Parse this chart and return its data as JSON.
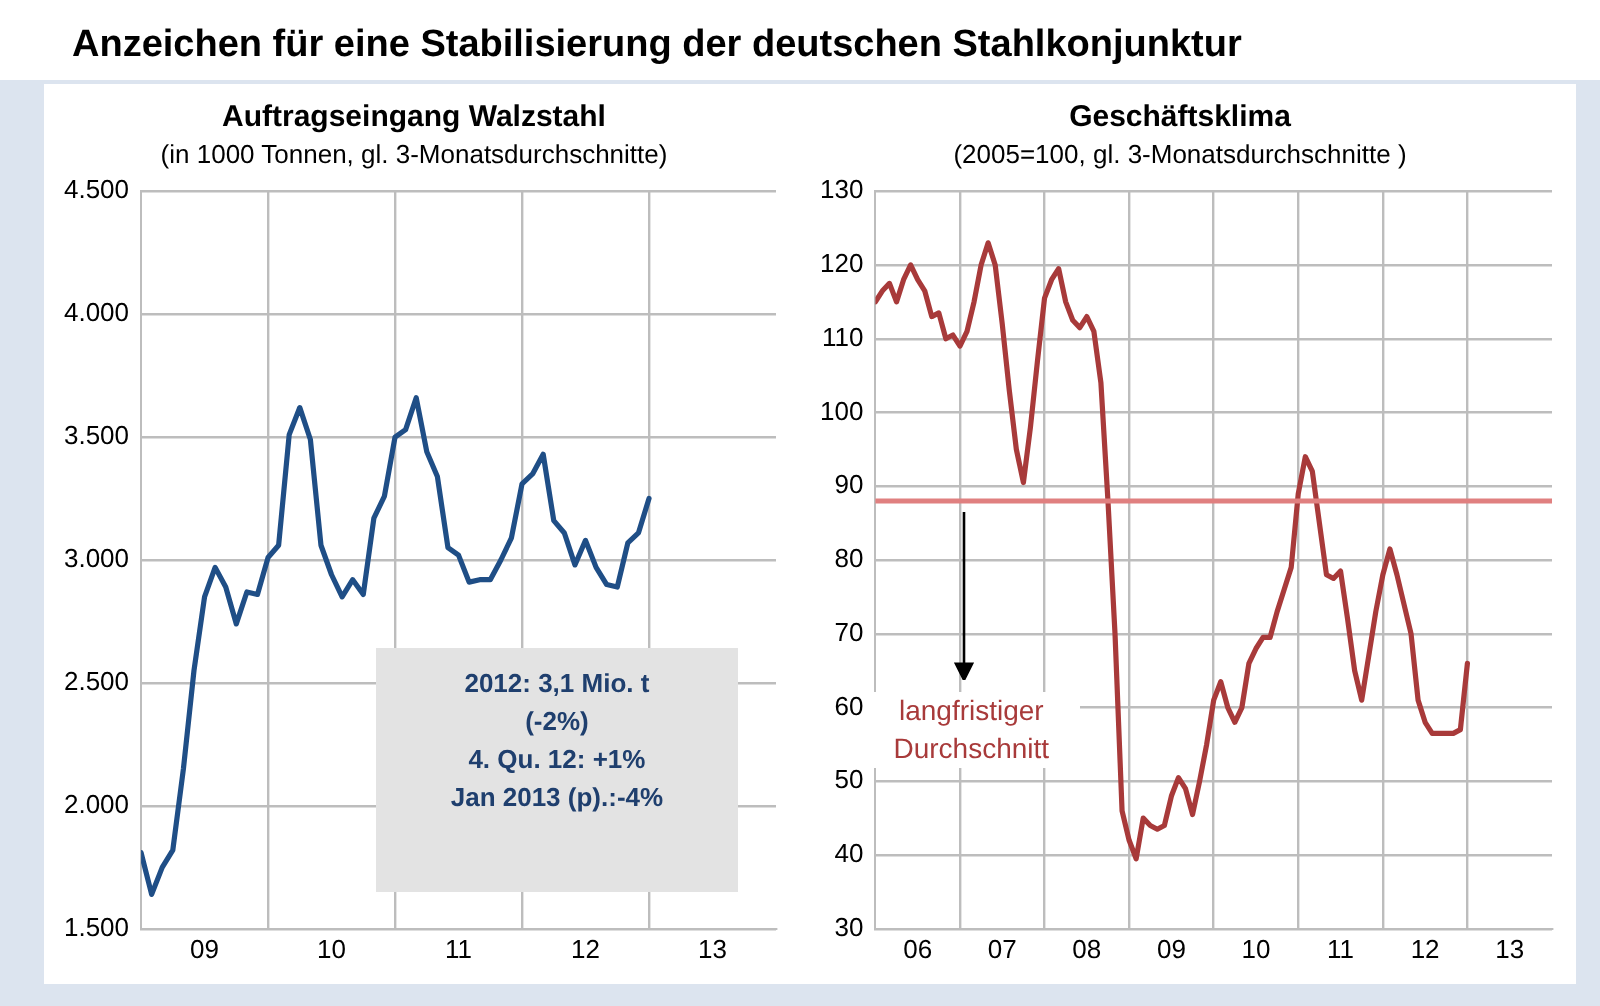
{
  "chart_data": [
    {
      "type": "line",
      "title": "Auftragseingang Walzstahl",
      "subtitle": "(in 1000 Tonnen, gl. 3-Monatsdurchschnitte)",
      "annotations": [
        "Anzeichen für eine Stabilisierung der deutschen Stahlkonjunktur",
        "2012: 3,1 Mio. t\n(-2%)\n4. Qu. 12: +1%\nJan 2013 (p).:-4%"
      ],
      "x": [
        "2009-01",
        "2009-02",
        "2009-03",
        "2009-04",
        "2009-05",
        "2009-06",
        "2009-07",
        "2009-08",
        "2009-09",
        "2009-10",
        "2009-11",
        "2009-12",
        "2010-01",
        "2010-02",
        "2010-03",
        "2010-04",
        "2010-05",
        "2010-06",
        "2010-07",
        "2010-08",
        "2010-09",
        "2010-10",
        "2010-11",
        "2010-12",
        "2011-01",
        "2011-02",
        "2011-03",
        "2011-04",
        "2011-05",
        "2011-06",
        "2011-07",
        "2011-08",
        "2011-09",
        "2011-10",
        "2011-11",
        "2011-12",
        "2012-01",
        "2012-02",
        "2012-03",
        "2012-04",
        "2012-05",
        "2012-06",
        "2012-07",
        "2012-08",
        "2012-09",
        "2012-10",
        "2012-11",
        "2012-12",
        "2013-01"
      ],
      "series": [
        {
          "color": "#1f4e86",
          "values": [
            1810,
            1640,
            1750,
            1820,
            2150,
            2550,
            2850,
            2970,
            2890,
            2740,
            2870,
            2860,
            3010,
            3060,
            3510,
            3620,
            3490,
            3060,
            2940,
            2850,
            2920,
            2860,
            3170,
            3260,
            3500,
            3530,
            3660,
            3440,
            3340,
            3050,
            3020,
            2910,
            2920,
            2920,
            3000,
            3090,
            3310,
            3350,
            3430,
            3160,
            3110,
            2980,
            3080,
            2970,
            2900,
            2890,
            3070,
            3110,
            3250
          ]
        }
      ],
      "xlim": [
        "2009-01",
        "2014-01"
      ],
      "xticks": [
        {
          "value": "2009-07",
          "label": "09"
        },
        {
          "value": "2010-01",
          "label": null
        },
        {
          "value": "2010-07",
          "label": "10"
        },
        {
          "value": "2011-01",
          "label": null
        },
        {
          "value": "2011-07",
          "label": "11"
        },
        {
          "value": "2012-01",
          "label": null
        },
        {
          "value": "2012-07",
          "label": "12"
        },
        {
          "value": "2013-01",
          "label": null
        },
        {
          "value": "2013-07",
          "label": "13"
        }
      ],
      "ylim": [
        1500,
        4500
      ],
      "yticks": [
        {
          "value": 1500,
          "label": "1.500"
        },
        {
          "value": 2000,
          "label": "2.000"
        },
        {
          "value": 2500,
          "label": "2.500"
        },
        {
          "value": 3000,
          "label": "3.000"
        },
        {
          "value": 3500,
          "label": "3.500"
        },
        {
          "value": 4000,
          "label": "4.000"
        },
        {
          "value": 4500,
          "label": "4.500"
        }
      ],
      "grid": true,
      "legend": false,
      "marker": "none",
      "line_style": "solid"
    },
    {
      "type": "line",
      "title": "Geschäftsklima",
      "subtitle": "(2005=100, gl. 3-Monatsdurchschnitte )",
      "x": [
        "2006-01",
        "2006-02",
        "2006-03",
        "2006-04",
        "2006-05",
        "2006-06",
        "2006-07",
        "2006-08",
        "2006-09",
        "2006-10",
        "2006-11",
        "2006-12",
        "2007-01",
        "2007-02",
        "2007-03",
        "2007-04",
        "2007-05",
        "2007-06",
        "2007-07",
        "2007-08",
        "2007-09",
        "2007-10",
        "2007-11",
        "2007-12",
        "2008-01",
        "2008-02",
        "2008-03",
        "2008-04",
        "2008-05",
        "2008-06",
        "2008-07",
        "2008-08",
        "2008-09",
        "2008-10",
        "2008-11",
        "2008-12",
        "2009-01",
        "2009-02",
        "2009-03",
        "2009-04",
        "2009-05",
        "2009-06",
        "2009-07",
        "2009-08",
        "2009-09",
        "2009-10",
        "2009-11",
        "2009-12",
        "2010-01",
        "2010-02",
        "2010-03",
        "2010-04",
        "2010-05",
        "2010-06",
        "2010-07",
        "2010-08",
        "2010-09",
        "2010-10",
        "2010-11",
        "2010-12",
        "2011-01",
        "2011-02",
        "2011-03",
        "2011-04",
        "2011-05",
        "2011-06",
        "2011-07",
        "2011-08",
        "2011-09",
        "2011-10",
        "2011-11",
        "2011-12",
        "2012-01",
        "2012-02",
        "2012-03",
        "2012-04",
        "2012-05",
        "2012-06",
        "2012-07",
        "2012-08",
        "2012-09",
        "2012-10",
        "2012-11",
        "2012-12",
        "2013-01"
      ],
      "series": [
        {
          "color": "#a83a3a",
          "values": [
            115,
            116.5,
            117.5,
            115,
            118,
            120,
            118,
            116.5,
            113,
            113.5,
            110,
            110.5,
            109,
            111,
            115,
            120,
            123,
            120,
            112,
            103,
            95,
            90.5,
            98,
            107,
            115.5,
            118,
            119.5,
            115,
            112.5,
            111.5,
            113,
            111,
            104,
            88,
            70,
            46,
            42,
            39.5,
            45,
            44,
            43.5,
            44,
            48,
            50.5,
            49,
            45.5,
            50,
            55,
            61,
            63.5,
            60,
            58,
            60,
            66,
            68,
            69.5,
            69.5,
            73,
            76,
            79,
            89,
            94,
            92,
            85,
            78,
            77.5,
            78.5,
            72,
            65,
            61,
            67,
            73,
            78,
            81.5,
            78,
            74,
            70,
            61,
            58,
            56.5,
            56.5,
            56.5,
            56.5,
            57,
            66
          ]
        }
      ],
      "xlim": [
        "2006-01",
        "2014-01"
      ],
      "xticks": [
        {
          "value": "2006-07",
          "label": "06"
        },
        {
          "value": "2007-01",
          "label": null
        },
        {
          "value": "2007-07",
          "label": "07"
        },
        {
          "value": "2008-01",
          "label": null
        },
        {
          "value": "2008-07",
          "label": "08"
        },
        {
          "value": "2009-01",
          "label": null
        },
        {
          "value": "2009-07",
          "label": "09"
        },
        {
          "value": "2010-01",
          "label": null
        },
        {
          "value": "2010-07",
          "label": "10"
        },
        {
          "value": "2011-01",
          "label": null
        },
        {
          "value": "2011-07",
          "label": "11"
        },
        {
          "value": "2012-01",
          "label": null
        },
        {
          "value": "2012-07",
          "label": "12"
        },
        {
          "value": "2013-01",
          "label": null
        },
        {
          "value": "2013-07",
          "label": "13"
        }
      ],
      "ylim": [
        30,
        130
      ],
      "yticks": [
        30,
        40,
        50,
        60,
        70,
        80,
        90,
        100,
        110,
        120,
        130
      ],
      "annotations": [
        "langfristiger\nDurchschnitt"
      ],
      "ref_lines": [
        {
          "axis": "y",
          "value": 88,
          "color": "#e08080"
        }
      ],
      "grid": true,
      "legend": false,
      "marker": "none",
      "line_style": "solid"
    }
  ]
}
